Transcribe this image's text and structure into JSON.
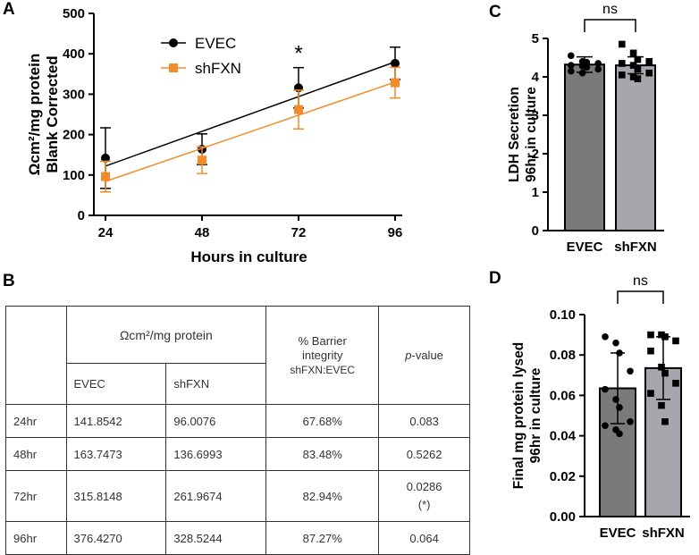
{
  "panels": {
    "a": "A",
    "b": "B",
    "c": "C",
    "d": "D"
  },
  "colors": {
    "evec": "#000000",
    "shfxn": "#f28c28",
    "bar_evec": "#7a7a7a",
    "bar_shfxn": "#a6a6ad"
  },
  "chart_data": [
    {
      "id": "A",
      "type": "line",
      "xlabel": "Hours in culture",
      "ylabel_line1": "Ωcm²/mg protein",
      "ylabel_line2": "Blank Corrected",
      "x": [
        24,
        48,
        72,
        96
      ],
      "x_ticks": [
        "24",
        "48",
        "72",
        "96"
      ],
      "ylim": [
        0,
        500
      ],
      "y_ticks": [
        "0",
        "100",
        "200",
        "300",
        "400",
        "500"
      ],
      "legend": [
        "EVEC",
        "shFXN"
      ],
      "significance": "*",
      "series": [
        {
          "name": "EVEC",
          "values": [
            141.85,
            163.75,
            315.81,
            376.43
          ],
          "err": [
            75,
            38,
            50,
            40
          ],
          "fit": [
            122,
            380
          ]
        },
        {
          "name": "shFXN",
          "values": [
            96.01,
            136.7,
            261.97,
            328.52
          ],
          "err": [
            38,
            33,
            48,
            38
          ],
          "fit": [
            84,
            330
          ]
        }
      ]
    },
    {
      "id": "C",
      "type": "bar",
      "ylabel_line1": "LDH  Secretion",
      "ylabel_line2": "96hr in culture",
      "categories": [
        "EVEC",
        "shFXN"
      ],
      "values": [
        4.32,
        4.3
      ],
      "err": [
        0.2,
        0.22
      ],
      "ylim": [
        0,
        5
      ],
      "y_ticks": [
        "0",
        "1",
        "2",
        "3",
        "4",
        "5"
      ],
      "significance": "ns",
      "points": [
        [
          4.55,
          4.4,
          4.38,
          4.35,
          4.3,
          4.28,
          4.25,
          4.2,
          4.15,
          4.1
        ],
        [
          4.85,
          4.62,
          4.45,
          4.4,
          4.35,
          4.3,
          4.2,
          4.1,
          4.05,
          4.0,
          3.95
        ]
      ]
    },
    {
      "id": "D",
      "type": "bar",
      "ylabel_line1": "Final mg protein lysed",
      "ylabel_line2": "96hr in culture",
      "categories": [
        "EVEC",
        "shFXN"
      ],
      "values": [
        0.0635,
        0.0735
      ],
      "err": [
        0.0175,
        0.0155
      ],
      "ylim": [
        0,
        0.1
      ],
      "y_ticks": [
        "0.00",
        "0.02",
        "0.04",
        "0.06",
        "0.08",
        "0.10"
      ],
      "significance": "ns",
      "points": [
        [
          0.089,
          0.086,
          0.081,
          0.072,
          0.063,
          0.058,
          0.054,
          0.047,
          0.045,
          0.043,
          0.041
        ],
        [
          0.09,
          0.09,
          0.089,
          0.087,
          0.082,
          0.074,
          0.071,
          0.066,
          0.061,
          0.055,
          0.047
        ]
      ]
    }
  ],
  "table": {
    "header_group": "Ωcm²/mg protein",
    "header_evec": "EVEC",
    "header_shfxn": "shFXN",
    "header_barrier_1": "% Barrier",
    "header_barrier_2": "integrity",
    "header_barrier_3": "shFXN:EVEC",
    "header_pvalue_italic": "p",
    "header_pvalue_rest": "-value",
    "rows": [
      {
        "time": "24hr",
        "evec": "141.8542",
        "shfxn": "96.0076",
        "barrier": "67.68%",
        "p": "0.083",
        "p2": ""
      },
      {
        "time": "48hr",
        "evec": "163.7473",
        "shfxn": "136.6993",
        "barrier": "83.48%",
        "p": "0.5262",
        "p2": ""
      },
      {
        "time": "72hr",
        "evec": "315.8148",
        "shfxn": "261.9674",
        "barrier": "82.94%",
        "p": "0.0286",
        "p2": "(*)"
      },
      {
        "time": "96hr",
        "evec": "376.4270",
        "shfxn": "328.5244",
        "barrier": "87.27%",
        "p": "0.064",
        "p2": ""
      }
    ]
  }
}
